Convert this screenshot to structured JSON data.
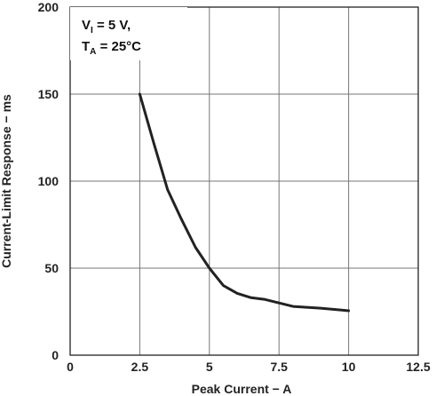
{
  "chart_data": {
    "type": "line",
    "xlabel": "Peak Current − A",
    "ylabel": "Current-Limit Response − ms",
    "xlim": [
      0,
      12.5
    ],
    "ylim": [
      0,
      200
    ],
    "x_ticks": [
      "0",
      "2.5",
      "5",
      "7.5",
      "10",
      "12.5"
    ],
    "y_ticks": [
      "0",
      "50",
      "100",
      "150",
      "200"
    ],
    "grid": true,
    "annotation": {
      "line1_main": "V",
      "line1_sub": "I",
      "line1_rest": " = 5 V,",
      "line2_main": "T",
      "line2_sub": "A",
      "line2_rest": " = 25°C"
    },
    "series": [
      {
        "color": "#222222",
        "x": [
          2.5,
          3.0,
          3.5,
          4.0,
          4.5,
          5.0,
          5.5,
          6.0,
          6.5,
          7.0,
          7.5,
          8.0,
          9.0,
          10.0
        ],
        "y": [
          150,
          122,
          95,
          78,
          62,
          50,
          40,
          35.5,
          33,
          32,
          30,
          28,
          27,
          25.5
        ]
      }
    ]
  }
}
